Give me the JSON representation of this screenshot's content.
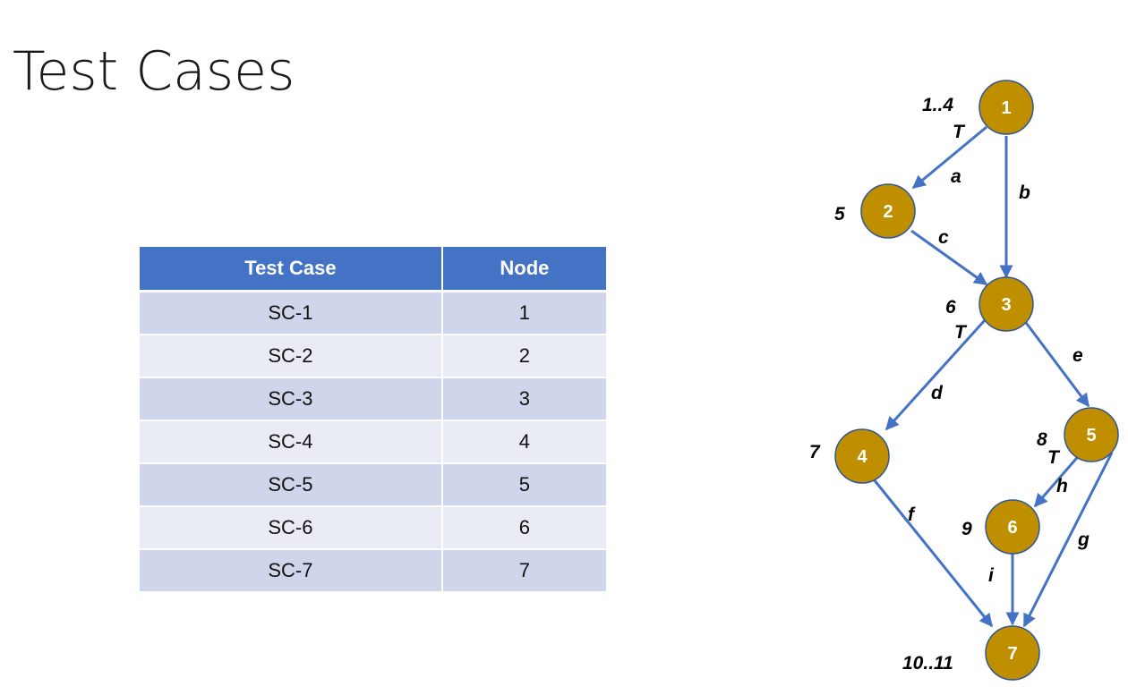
{
  "title": "Test Cases",
  "table": {
    "headers": [
      "Test Case",
      "Node"
    ],
    "rows": [
      [
        "SC-1",
        "1"
      ],
      [
        "SC-2",
        "2"
      ],
      [
        "SC-3",
        "3"
      ],
      [
        "SC-4",
        "4"
      ],
      [
        "SC-5",
        "5"
      ],
      [
        "SC-6",
        "6"
      ],
      [
        "SC-7",
        "7"
      ]
    ]
  },
  "graph": {
    "colors": {
      "node_fill": "#bf8f00",
      "edge": "#4472c4",
      "header": "#4472c4"
    },
    "nodes": [
      {
        "id": "1",
        "line_label": "1..4"
      },
      {
        "id": "2",
        "line_label": "5"
      },
      {
        "id": "3",
        "line_label": "6"
      },
      {
        "id": "4",
        "line_label": "7"
      },
      {
        "id": "5",
        "line_label": "8"
      },
      {
        "id": "6",
        "line_label": "9"
      },
      {
        "id": "7",
        "line_label": "10..11"
      }
    ],
    "edges": [
      {
        "label": "a",
        "from": "1",
        "to": "2"
      },
      {
        "label": "b",
        "from": "1",
        "to": "3"
      },
      {
        "label": "c",
        "from": "2",
        "to": "3"
      },
      {
        "label": "d",
        "from": "3",
        "to": "4"
      },
      {
        "label": "e",
        "from": "3",
        "to": "5"
      },
      {
        "label": "f",
        "from": "4",
        "to": "7"
      },
      {
        "label": "g",
        "from": "5",
        "to": "7"
      },
      {
        "label": "h",
        "from": "5",
        "to": "6"
      },
      {
        "label": "i",
        "from": "6",
        "to": "7"
      }
    ],
    "true_markers": [
      "T",
      "T",
      "T"
    ]
  }
}
